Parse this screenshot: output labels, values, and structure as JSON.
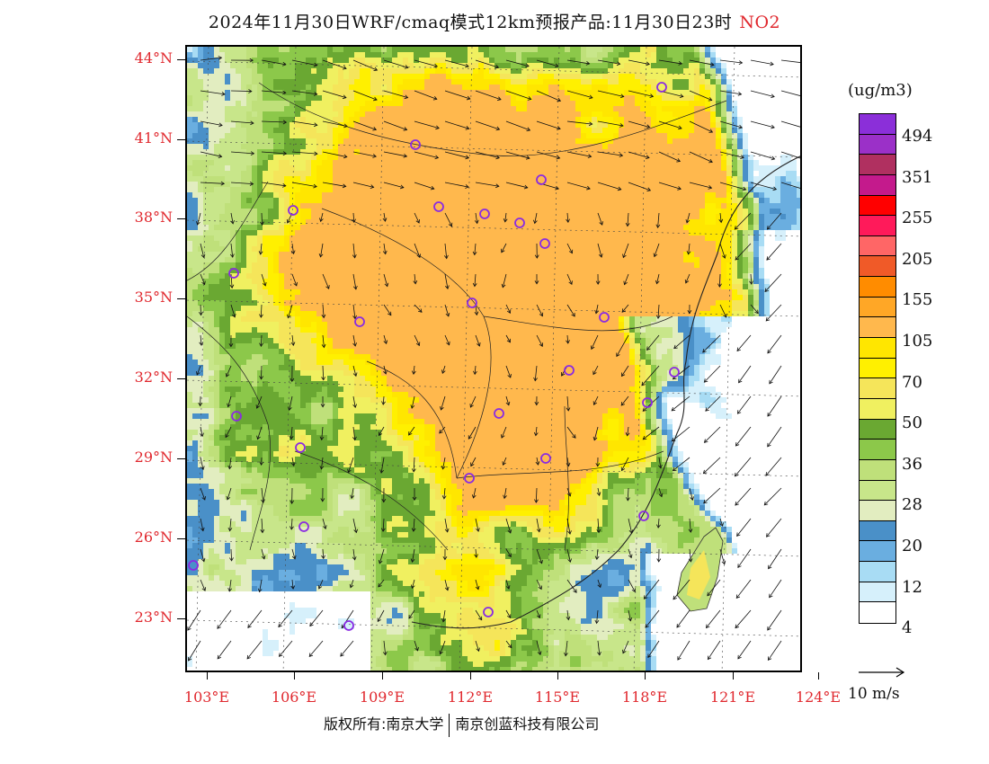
{
  "title": {
    "text": "2024年11月30日WRF/cmaq模式12km预报产品:11月30日23时",
    "pollutant": "NO2"
  },
  "map": {
    "lat_labels": [
      "44°N",
      "41°N",
      "38°N",
      "35°N",
      "32°N",
      "29°N",
      "26°N",
      "23°N"
    ],
    "lon_labels": [
      "103°E",
      "106°E",
      "109°E",
      "112°E",
      "115°E",
      "118°E",
      "121°E",
      "124°E"
    ],
    "lat_range": [
      21,
      44.5
    ],
    "lon_range": [
      103,
      124
    ],
    "city_marker_color": "#8a2be2"
  },
  "legend": {
    "unit": "(ug/m3)",
    "levels": [
      "494",
      "351",
      "255",
      "205",
      "155",
      "105",
      "70",
      "50",
      "36",
      "28",
      "20",
      "12",
      "4"
    ],
    "colors": [
      "#8b2fd9",
      "#9b30c8",
      "#b03060",
      "#c41a8c",
      "#ff0000",
      "#ff1a5a",
      "#ff6666",
      "#f05a28",
      "#ff8c00",
      "#ffa726",
      "#ffb84d",
      "#ffe600",
      "#fff000",
      "#f5e55a",
      "#f0f060",
      "#6aa832",
      "#8cc84a",
      "#bfe07a",
      "#c8e68a",
      "#e2edc0",
      "#4a90c8",
      "#6aaee0",
      "#a8dcf4",
      "#d6f0fb",
      "#ffffff"
    ],
    "vector_label": "10 m/s"
  },
  "footer": {
    "left": "版权所有:南京大学",
    "right": "南京创蓝科技有限公司"
  }
}
